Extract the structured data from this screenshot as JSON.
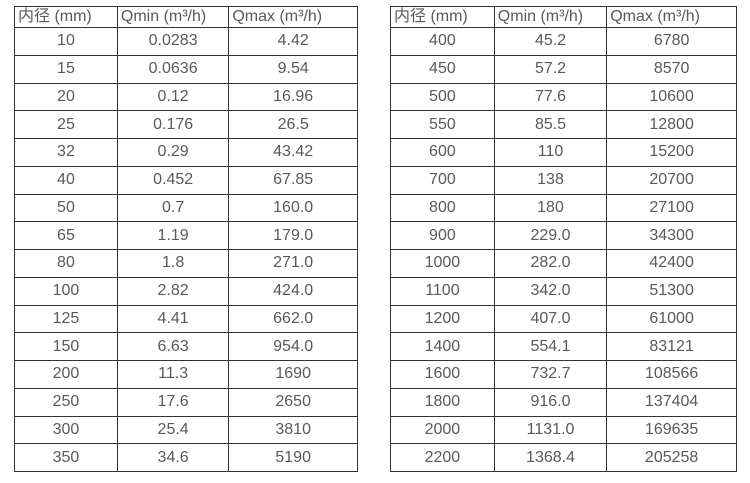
{
  "page": {
    "background": "#ffffff",
    "table_border_color": "#333333",
    "text_color": "#595959"
  },
  "chart_data": [
    {
      "type": "table",
      "columns": [
        "内径 (mm)",
        "Qmin (m³/h)",
        "Qmax (m³/h)"
      ],
      "rows": [
        [
          "10",
          "0.0283",
          "4.42"
        ],
        [
          "15",
          "0.0636",
          "9.54"
        ],
        [
          "20",
          "0.12",
          "16.96"
        ],
        [
          "25",
          "0.176",
          "26.5"
        ],
        [
          "32",
          "0.29",
          "43.42"
        ],
        [
          "40",
          "0.452",
          "67.85"
        ],
        [
          "50",
          "0.7",
          "160.0"
        ],
        [
          "65",
          "1.19",
          "179.0"
        ],
        [
          "80",
          "1.8",
          "271.0"
        ],
        [
          "100",
          "2.82",
          "424.0"
        ],
        [
          "125",
          "4.41",
          "662.0"
        ],
        [
          "150",
          "6.63",
          "954.0"
        ],
        [
          "200",
          "11.3",
          "1690"
        ],
        [
          "250",
          "17.6",
          "2650"
        ],
        [
          "300",
          "25.4",
          "3810"
        ],
        [
          "350",
          "34.6",
          "5190"
        ]
      ]
    },
    {
      "type": "table",
      "columns": [
        "内径 (mm)",
        "Qmin (m³/h)",
        "Qmax (m³/h)"
      ],
      "rows": [
        [
          "400",
          "45.2",
          "6780"
        ],
        [
          "450",
          "57.2",
          "8570"
        ],
        [
          "500",
          "77.6",
          "10600"
        ],
        [
          "550",
          "85.5",
          "12800"
        ],
        [
          "600",
          "110",
          "15200"
        ],
        [
          "700",
          "138",
          "20700"
        ],
        [
          "800",
          "180",
          "27100"
        ],
        [
          "900",
          "229.0",
          "34300"
        ],
        [
          "1000",
          "282.0",
          "42400"
        ],
        [
          "1100",
          "342.0",
          "51300"
        ],
        [
          "1200",
          "407.0",
          "61000"
        ],
        [
          "1400",
          "554.1",
          "83121"
        ],
        [
          "1600",
          "732.7",
          "108566"
        ],
        [
          "1800",
          "916.0",
          "137404"
        ],
        [
          "2000",
          "1131.0",
          "169635"
        ],
        [
          "2200",
          "1368.4",
          "205258"
        ]
      ]
    }
  ]
}
